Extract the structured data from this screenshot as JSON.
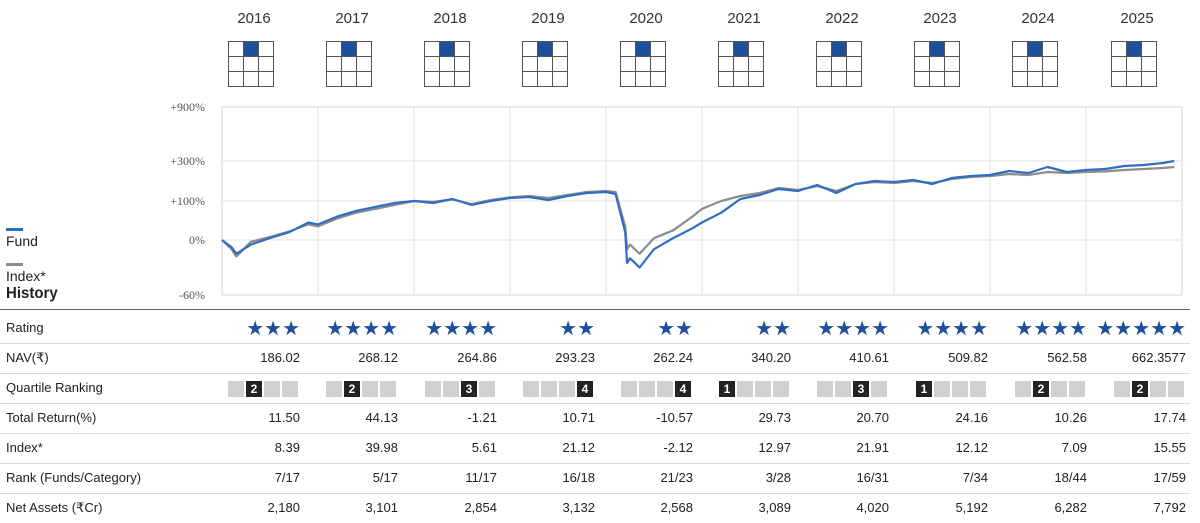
{
  "years": [
    "2016",
    "2017",
    "2018",
    "2019",
    "2020",
    "2021",
    "2022",
    "2023",
    "2024",
    "2025"
  ],
  "style_box": {
    "highlight_cell": 1,
    "highlight_color": "#1f4e9a"
  },
  "legend": {
    "fund": "Fund",
    "index": "Index*",
    "fund_color": "#2f6ec5",
    "index_color": "#8c8c8c"
  },
  "history_label": "History",
  "chart_data": {
    "type": "line",
    "y_ticks": [
      "+900%",
      "+300%",
      "+100%",
      "0%",
      "-60%"
    ],
    "x_range": [
      2016,
      2026
    ],
    "series": [
      {
        "name": "Fund",
        "color": "#2f6ec5",
        "x": [
          2016.0,
          2016.1,
          2016.15,
          2016.3,
          2016.5,
          2016.7,
          2016.9,
          2017.0,
          2017.2,
          2017.4,
          2017.6,
          2017.8,
          2018.0,
          2018.2,
          2018.4,
          2018.6,
          2018.8,
          2019.0,
          2019.2,
          2019.4,
          2019.6,
          2019.8,
          2020.0,
          2020.1,
          2020.2,
          2020.22,
          2020.25,
          2020.35,
          2020.5,
          2020.7,
          2020.9,
          2021.0,
          2021.2,
          2021.4,
          2021.6,
          2021.8,
          2022.0,
          2022.2,
          2022.4,
          2022.6,
          2022.8,
          2023.0,
          2023.2,
          2023.4,
          2023.6,
          2023.8,
          2024.0,
          2024.2,
          2024.4,
          2024.6,
          2024.8,
          2025.0,
          2025.2,
          2025.4,
          2025.6,
          2025.8,
          2025.92
        ],
        "y": [
          0,
          -8,
          -15,
          -5,
          5,
          20,
          45,
          40,
          60,
          75,
          85,
          95,
          100,
          95,
          110,
          90,
          100,
          115,
          120,
          105,
          125,
          140,
          145,
          135,
          20,
          -25,
          -20,
          -30,
          -10,
          5,
          30,
          45,
          70,
          110,
          130,
          160,
          150,
          180,
          140,
          185,
          200,
          195,
          205,
          185,
          215,
          225,
          230,
          250,
          240,
          270,
          245,
          255,
          260,
          275,
          280,
          290,
          300
        ]
      },
      {
        "name": "Index*",
        "color": "#8c8c8c",
        "x": [
          2016.0,
          2016.1,
          2016.15,
          2016.3,
          2016.5,
          2016.7,
          2016.9,
          2017.0,
          2017.2,
          2017.4,
          2017.6,
          2017.8,
          2018.0,
          2018.2,
          2018.4,
          2018.6,
          2018.8,
          2019.0,
          2019.2,
          2019.4,
          2019.6,
          2019.8,
          2020.0,
          2020.1,
          2020.2,
          2020.22,
          2020.25,
          2020.35,
          2020.5,
          2020.7,
          2020.9,
          2021.0,
          2021.2,
          2021.4,
          2021.6,
          2021.8,
          2022.0,
          2022.2,
          2022.4,
          2022.6,
          2022.8,
          2023.0,
          2023.2,
          2023.4,
          2023.6,
          2023.8,
          2024.0,
          2024.2,
          2024.4,
          2024.6,
          2024.8,
          2025.0,
          2025.2,
          2025.4,
          2025.6,
          2025.8,
          2025.92
        ],
        "y": [
          0,
          -10,
          -18,
          -2,
          8,
          22,
          40,
          35,
          55,
          70,
          80,
          90,
          100,
          98,
          108,
          92,
          105,
          118,
          125,
          115,
          130,
          145,
          150,
          145,
          35,
          -10,
          -5,
          -15,
          5,
          25,
          60,
          80,
          100,
          125,
          140,
          165,
          155,
          175,
          150,
          185,
          195,
          190,
          200,
          190,
          210,
          220,
          225,
          235,
          230,
          245,
          240,
          245,
          248,
          255,
          260,
          265,
          270
        ]
      }
    ]
  },
  "table": {
    "rows": [
      {
        "label": "Rating",
        "kind": "stars",
        "values": [
          "★★★",
          "★★★★",
          "★★★★",
          "★★",
          "★★",
          "★★",
          "★★★★",
          "★★★★",
          "★★★★",
          "★★★★★"
        ]
      },
      {
        "label": "NAV(₹)",
        "kind": "text",
        "values": [
          "186.02",
          "268.12",
          "264.86",
          "293.23",
          "262.24",
          "340.20",
          "410.61",
          "509.82",
          "562.58",
          "662.3577"
        ]
      },
      {
        "label": "Quartile Ranking",
        "kind": "quartile",
        "values": [
          "2",
          "2",
          "3",
          "4",
          "4",
          "1",
          "3",
          "1",
          "2",
          "2"
        ]
      },
      {
        "label": "Total Return(%)",
        "kind": "text",
        "values": [
          "11.50",
          "44.13",
          "-1.21",
          "10.71",
          "-10.57",
          "29.73",
          "20.70",
          "24.16",
          "10.26",
          "17.74"
        ]
      },
      {
        "label": "Index*",
        "kind": "text",
        "values": [
          "8.39",
          "39.98",
          "5.61",
          "21.12",
          "-2.12",
          "12.97",
          "21.91",
          "12.12",
          "7.09",
          "15.55"
        ]
      },
      {
        "label": "Rank (Funds/Category)",
        "kind": "text",
        "values": [
          "7/17",
          "5/17",
          "11/17",
          "16/18",
          "21/23",
          "3/28",
          "16/31",
          "7/34",
          "18/44",
          "17/59"
        ]
      },
      {
        "label": "Net Assets (₹Cr)",
        "kind": "text",
        "values": [
          "2,180",
          "3,101",
          "2,854",
          "3,132",
          "2,568",
          "3,089",
          "4,020",
          "5,192",
          "6,282",
          "7,792"
        ]
      }
    ]
  }
}
